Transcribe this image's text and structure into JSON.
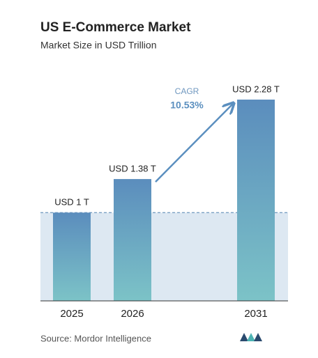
{
  "chart_data": {
    "type": "bar",
    "title": "US E-Commerce Market",
    "subtitle": "Market Size in USD Trillion",
    "categories": [
      "2025",
      "2026",
      "2031"
    ],
    "values": [
      1,
      1.38,
      2.28
    ],
    "value_labels": [
      "USD 1 T",
      "USD 1.38 T",
      "USD 2.28 T"
    ],
    "annotation": {
      "label": "CAGR",
      "value": "10.53%"
    },
    "source": "Source:  Mordor Intelligence"
  }
}
